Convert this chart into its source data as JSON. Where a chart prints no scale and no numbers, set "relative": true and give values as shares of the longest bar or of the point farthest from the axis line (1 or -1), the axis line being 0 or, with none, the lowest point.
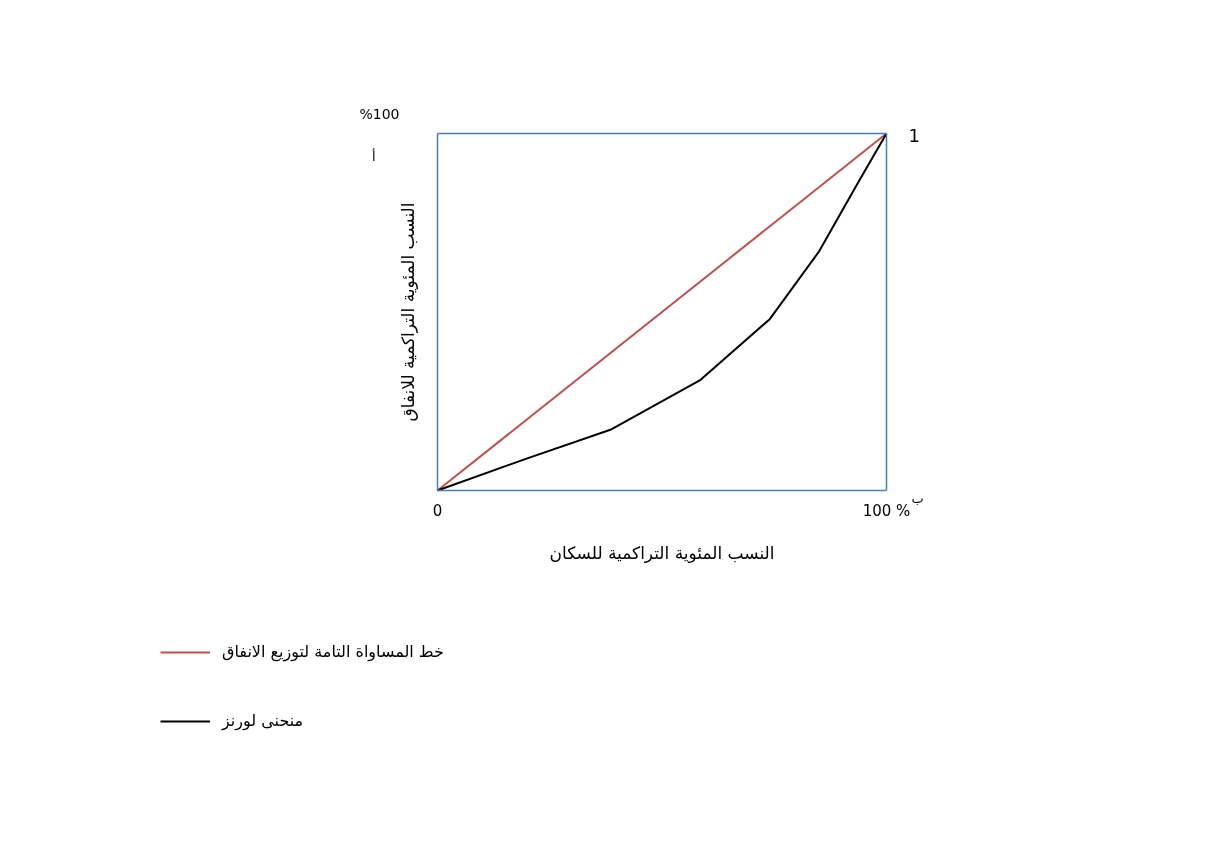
{
  "chart_data": {
    "type": "line",
    "xlabel": "النسب المئوية التراكمية للسكان",
    "ylabel": "النسب المئوية التراكمية للانفاق",
    "xlim": [
      0,
      100
    ],
    "xticks": [
      {
        "value": 0,
        "label": "0"
      },
      {
        "value": 100,
        "label": "100 %"
      }
    ],
    "relative": true,
    "legend": "bottom left",
    "marker": "none",
    "line_style": "solid",
    "series": [
      {
        "name": "خط المساواة التامة لتوزيع الانفاق",
        "color": "#c0504d",
        "x": [
          0,
          100
        ],
        "values": [
          0,
          1
        ]
      },
      {
        "name": "منحنى لورنز",
        "color": "#000000",
        "x": [
          0,
          20,
          38.5,
          58.6,
          74,
          85,
          94,
          100
        ],
        "values": [
          0,
          0.09,
          0.17,
          0.31,
          0.48,
          0.67,
          0.87,
          1
        ]
      }
    ],
    "annotations": [
      "%100",
      {
        "text": "1",
        "x": 100,
        "y": 1
      },
      "أ",
      "ب"
    ]
  }
}
